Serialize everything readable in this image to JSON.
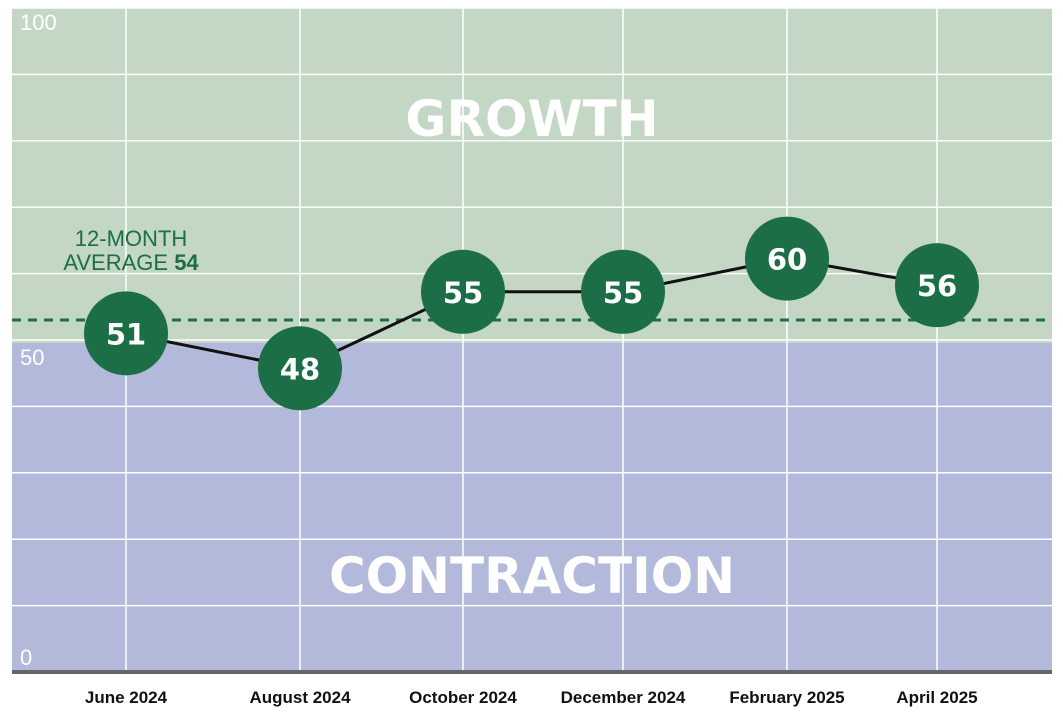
{
  "chart_data": {
    "type": "line",
    "categories": [
      "June 2024",
      "August 2024",
      "October 2024",
      "December 2024",
      "February 2025",
      "April 2025"
    ],
    "values": [
      51,
      48,
      55,
      55,
      60,
      56
    ],
    "ylim": [
      0,
      100
    ],
    "yticks": [
      "0",
      "50",
      "100"
    ],
    "threshold": 50,
    "zones": {
      "upper": "GROWTH",
      "lower": "CONTRACTION"
    },
    "average": {
      "value": 54,
      "label_line1": "12-MONTH",
      "label_line2": "AVERAGE",
      "value_label": "54"
    },
    "grid": true,
    "colors": {
      "growth_zone": "#c3d7c4",
      "contraction_zone": "#b3b9da",
      "marker": "#1b6e45",
      "line": "#111111",
      "average_line": "#1b6e45",
      "axis": "#666666"
    }
  }
}
